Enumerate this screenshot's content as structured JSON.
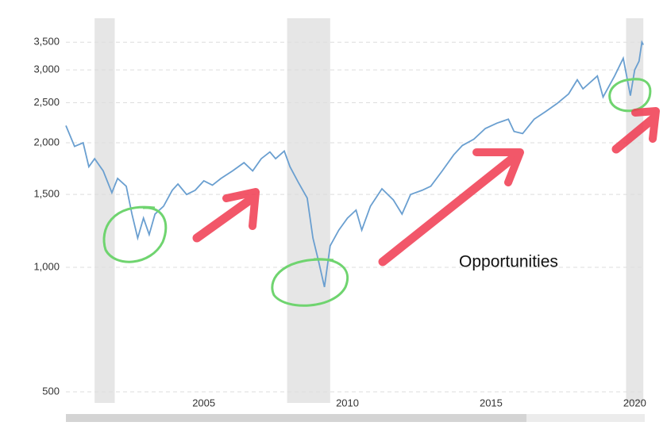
{
  "chart_data": {
    "type": "line",
    "annotation": "Opportunities",
    "x": [
      2000.2,
      2000.5,
      2000.8,
      2001.0,
      2001.2,
      2001.5,
      2001.8,
      2002.0,
      2002.3,
      2002.5,
      2002.7,
      2002.9,
      2003.1,
      2003.3,
      2003.6,
      2003.9,
      2004.1,
      2004.4,
      2004.7,
      2005.0,
      2005.3,
      2005.6,
      2006.0,
      2006.4,
      2006.7,
      2007.0,
      2007.3,
      2007.5,
      2007.8,
      2008.0,
      2008.3,
      2008.6,
      2008.8,
      2009.0,
      2009.2,
      2009.4,
      2009.7,
      2010.0,
      2010.3,
      2010.5,
      2010.8,
      2011.2,
      2011.6,
      2011.9,
      2012.2,
      2012.6,
      2012.9,
      2013.3,
      2013.7,
      2014.0,
      2014.4,
      2014.8,
      2015.2,
      2015.6,
      2015.8,
      2016.1,
      2016.5,
      2016.9,
      2017.3,
      2017.7,
      2018.0,
      2018.2,
      2018.7,
      2018.9,
      2019.3,
      2019.6,
      2019.85,
      2020.0,
      2020.15,
      2020.25,
      2020.3
    ],
    "values": [
      2200,
      1960,
      2000,
      1750,
      1830,
      1710,
      1515,
      1640,
      1570,
      1345,
      1177,
      1315,
      1200,
      1345,
      1405,
      1535,
      1590,
      1500,
      1535,
      1618,
      1580,
      1640,
      1710,
      1790,
      1710,
      1830,
      1900,
      1830,
      1910,
      1750,
      1600,
      1470,
      1177,
      1031,
      896,
      1127,
      1230,
      1315,
      1375,
      1230,
      1405,
      1548,
      1455,
      1345,
      1500,
      1535,
      1570,
      1710,
      1870,
      1970,
      2040,
      2165,
      2230,
      2280,
      2130,
      2105,
      2280,
      2380,
      2490,
      2625,
      2840,
      2700,
      2900,
      2580,
      2900,
      3200,
      2600,
      3000,
      3150,
      3500,
      3450
    ],
    "color": "#6a9fd0",
    "recessions": [
      [
        2001.2,
        2001.9
      ],
      [
        2007.9,
        2009.4
      ],
      [
        2019.7,
        2020.3
      ]
    ],
    "xlim": [
      2000.2,
      2020.35
    ],
    "xticks": [
      2005,
      2010,
      2015,
      2020
    ],
    "ylim": [
      470,
      4000
    ],
    "yticks": [
      500,
      {
        "value": 1000,
        "label": "1,000"
      },
      {
        "value": 1500,
        "label": "1,500"
      },
      {
        "value": 2000,
        "label": "2,000"
      },
      {
        "value": 2500,
        "label": "2,500"
      },
      {
        "value": 3000,
        "label": "3,000"
      },
      {
        "value": 3500,
        "label": "3,500"
      }
    ],
    "log_scale": true,
    "grid": true
  }
}
